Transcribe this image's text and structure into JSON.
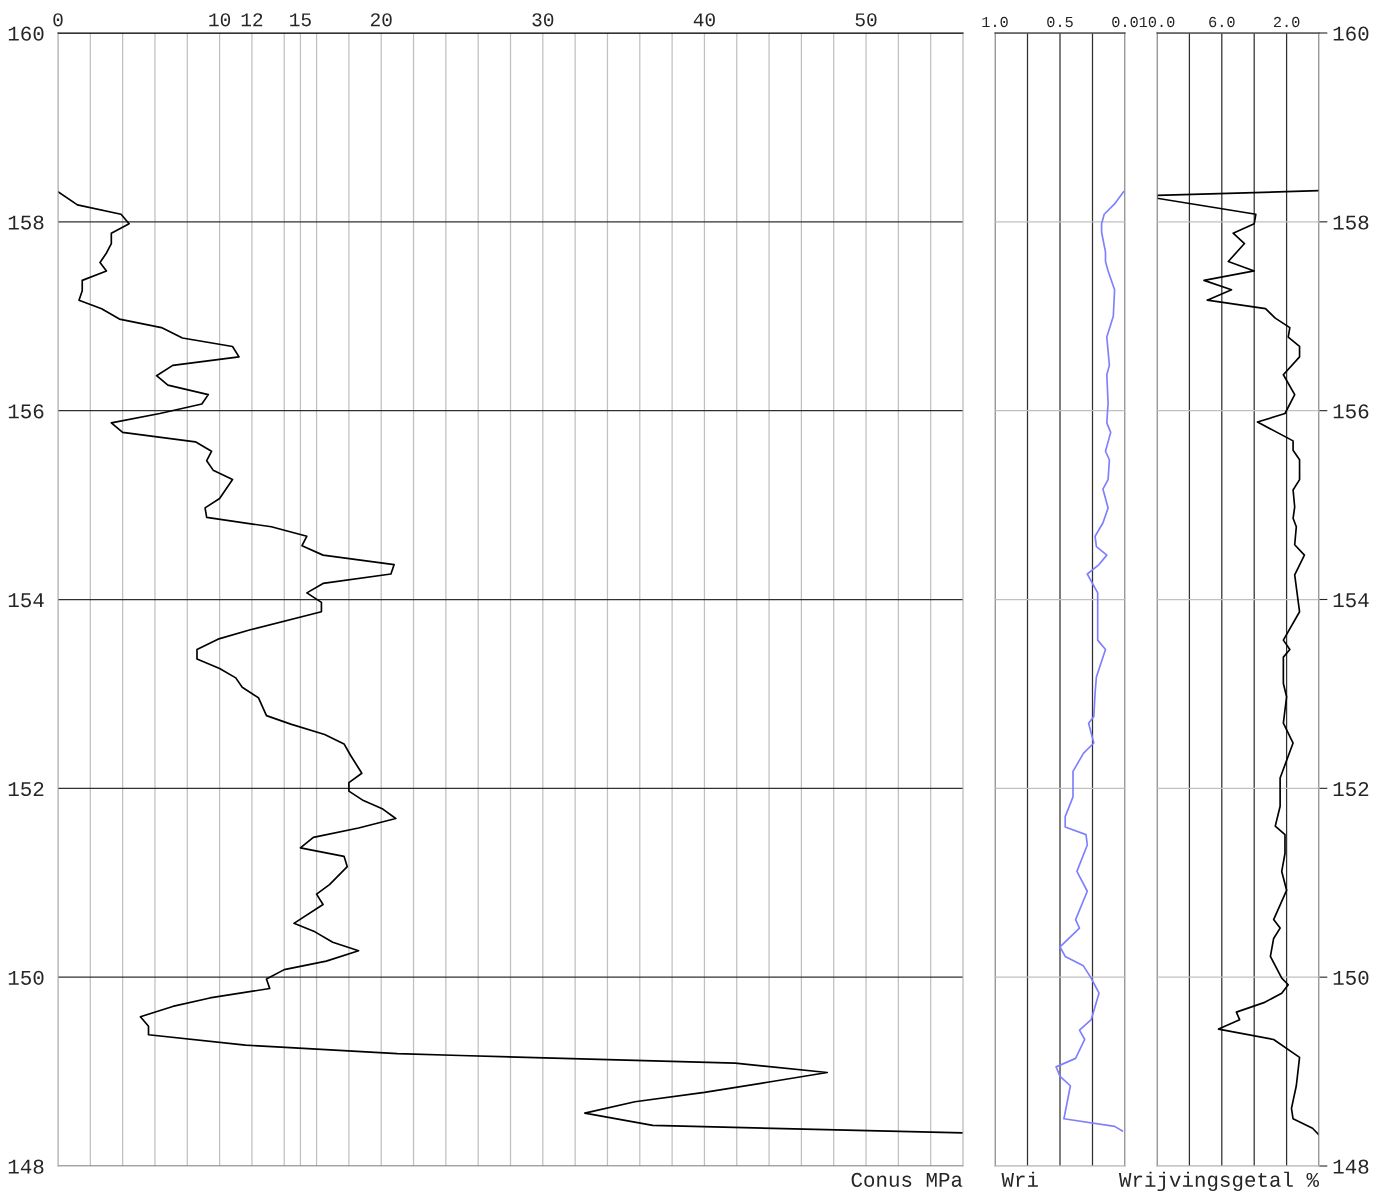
{
  "chart_data": [
    {
      "type": "line",
      "orientation": "horizontal",
      "xlabel": "Conus MPa",
      "grid": true,
      "xlim": [
        0,
        56
      ],
      "xticks": [
        0,
        {
          "value": 2,
          "label": null
        },
        {
          "value": 4,
          "label": null
        },
        {
          "value": 6,
          "label": null
        },
        {
          "value": 8,
          "label": null
        },
        10,
        12,
        {
          "value": 14,
          "label": null
        },
        15,
        {
          "value": 16,
          "label": null
        },
        {
          "value": 18,
          "label": null
        },
        20,
        {
          "value": 22,
          "label": null
        },
        {
          "value": 24,
          "label": null
        },
        {
          "value": 26,
          "label": null
        },
        {
          "value": 28,
          "label": null
        },
        30,
        {
          "value": 32,
          "label": null
        },
        {
          "value": 34,
          "label": null
        },
        {
          "value": 36,
          "label": null
        },
        {
          "value": 38,
          "label": null
        },
        40,
        {
          "value": 42,
          "label": null
        },
        {
          "value": 44,
          "label": null
        },
        {
          "value": 46,
          "label": null
        },
        {
          "value": 48,
          "label": null
        },
        50,
        {
          "value": 52,
          "label": null
        },
        {
          "value": 54,
          "label": null
        }
      ],
      "ylim": [
        148,
        160
      ],
      "yticks": [
        148,
        150,
        152,
        154,
        156,
        158,
        160
      ],
      "x": [
        158.32,
        158.18,
        158.08,
        157.98,
        157.88,
        157.77,
        157.67,
        157.57,
        157.48,
        157.38,
        157.27,
        157.17,
        157.08,
        156.97,
        156.88,
        156.77,
        156.68,
        156.57,
        156.48,
        156.37,
        156.27,
        156.17,
        156.07,
        155.97,
        155.87,
        155.77,
        155.67,
        155.57,
        155.47,
        155.37,
        155.27,
        155.07,
        154.97,
        154.87,
        154.77,
        154.67,
        154.57,
        154.47,
        154.37,
        154.27,
        154.17,
        154.07,
        153.97,
        153.87,
        153.68,
        153.58,
        153.47,
        153.37,
        153.27,
        153.17,
        153.07,
        152.96,
        152.77,
        152.68,
        152.57,
        152.47,
        152.35,
        152.16,
        152.06,
        151.97,
        151.87,
        151.78,
        151.68,
        151.58,
        151.48,
        151.37,
        151.28,
        151.17,
        150.98,
        150.88,
        150.77,
        150.57,
        150.48,
        150.37,
        150.28,
        150.17,
        150.08,
        149.98,
        149.88,
        149.78,
        149.69,
        149.58,
        149.48,
        149.39,
        149.28,
        149.19,
        149.17,
        149.09,
        148.99,
        148.89,
        148.78,
        148.68,
        148.56,
        148.43,
        148.35
      ],
      "series": [
        {
          "color": "#000000",
          "values": [
            0,
            1.2,
            3.9,
            4.4,
            3.3,
            3.3,
            3.0,
            2.6,
            3.0,
            1.5,
            1.5,
            1.3,
            2.7,
            3.8,
            6.4,
            7.7,
            10.8,
            11.2,
            7.1,
            6.1,
            6.8,
            9.3,
            8.9,
            6.3,
            3.3,
            4.0,
            8.5,
            9.5,
            9.2,
            9.6,
            10.8,
            10.0,
            9.1,
            9.2,
            13.2,
            15.4,
            15.1,
            16.4,
            20.8,
            20.6,
            16.4,
            15.4,
            16.3,
            16.3,
            11.9,
            9.9,
            8.6,
            8.6,
            10.0,
            11.0,
            11.4,
            12.4,
            12.9,
            14.4,
            16.5,
            17.7,
            18.1,
            18.8,
            18.0,
            18.0,
            18.9,
            20.1,
            20.9,
            18.6,
            15.8,
            15.0,
            17.7,
            17.9,
            16.8,
            16.0,
            16.4,
            14.6,
            15.9,
            17.0,
            18.6,
            16.6,
            14.0,
            12.9,
            13.1,
            9.4,
            7.1,
            5.1,
            5.6,
            5.6,
            11.6,
            21.0,
            24.9,
            41.9,
            47.6,
            44.0,
            40.0,
            35.7,
            32.6,
            36.8,
            56.0
          ]
        }
      ]
    },
    {
      "type": "line",
      "orientation": "horizontal",
      "xlabel": "Wri",
      "grid": true,
      "tick_labels": "x",
      "xlim": [
        1.0,
        0.0
      ],
      "xticks": [
        {
          "value": 1.0,
          "label": "1.0"
        },
        {
          "value": 0.75,
          "label": null
        },
        {
          "value": 0.5,
          "label": "0.5"
        },
        {
          "value": 0.25,
          "label": null
        },
        {
          "value": 0.0,
          "label": "0.0"
        }
      ],
      "ylim": [
        148,
        160
      ],
      "yticks": [
        148,
        150,
        152,
        154,
        156,
        158,
        160
      ],
      "x": [
        158.32,
        158.19,
        158.08,
        157.98,
        157.89,
        157.68,
        157.58,
        157.48,
        157.28,
        157.0,
        156.78,
        156.48,
        156.38,
        156.08,
        155.87,
        155.77,
        155.57,
        155.48,
        155.27,
        155.17,
        154.97,
        154.81,
        154.67,
        154.56,
        154.47,
        154.37,
        154.27,
        154.07,
        153.57,
        153.47,
        153.18,
        153.01,
        152.76,
        152.69,
        152.48,
        152.37,
        152.18,
        151.91,
        151.7,
        151.59,
        151.51,
        151.4,
        151.12,
        150.91,
        150.61,
        150.52,
        150.32,
        150.22,
        150.12,
        149.99,
        149.83,
        149.55,
        149.44,
        149.34,
        149.14,
        149.05,
        148.95,
        148.85,
        148.5,
        148.42,
        148.37
      ],
      "series": [
        {
          "color": "#7f7fff",
          "values": [
            0.01,
            0.08,
            0.16,
            0.18,
            0.18,
            0.15,
            0.15,
            0.13,
            0.08,
            0.09,
            0.14,
            0.12,
            0.14,
            0.13,
            0.14,
            0.11,
            0.15,
            0.12,
            0.13,
            0.17,
            0.13,
            0.17,
            0.23,
            0.22,
            0.14,
            0.2,
            0.29,
            0.21,
            0.21,
            0.15,
            0.22,
            0.23,
            0.24,
            0.28,
            0.24,
            0.32,
            0.4,
            0.4,
            0.46,
            0.46,
            0.3,
            0.29,
            0.37,
            0.29,
            0.38,
            0.35,
            0.5,
            0.46,
            0.32,
            0.26,
            0.2,
            0.26,
            0.35,
            0.31,
            0.38,
            0.53,
            0.5,
            0.42,
            0.47,
            0.08,
            0.02
          ]
        }
      ]
    },
    {
      "type": "line",
      "orientation": "horizontal",
      "xlabel": "Wrijvingsgetal %",
      "grid": true,
      "xlim": [
        10.0,
        0.0
      ],
      "xticks": [
        {
          "value": 10.0,
          "label": "10.0"
        },
        {
          "value": 8.0,
          "label": null
        },
        {
          "value": 6.0,
          "label": "6.0"
        },
        {
          "value": 4.0,
          "label": null
        },
        {
          "value": 2.0,
          "label": "2.0"
        },
        {
          "value": 0.0,
          "label": null
        }
      ],
      "ylim": [
        148,
        160
      ],
      "yticks": [
        148,
        150,
        152,
        154,
        156,
        158,
        160
      ],
      "x": [
        158.33,
        158.28,
        158.25,
        158.08,
        157.98,
        157.88,
        157.77,
        157.58,
        157.48,
        157.38,
        157.28,
        157.17,
        157.08,
        156.98,
        156.88,
        156.78,
        156.68,
        156.57,
        156.38,
        156.17,
        155.97,
        155.88,
        155.68,
        155.58,
        155.48,
        155.27,
        155.16,
        154.98,
        154.86,
        154.77,
        154.58,
        154.47,
        154.26,
        153.87,
        153.57,
        153.47,
        153.39,
        153.11,
        152.97,
        152.69,
        152.48,
        152.11,
        151.81,
        151.6,
        151.51,
        151.31,
        151.12,
        150.92,
        150.61,
        150.52,
        150.41,
        150.22,
        149.99,
        149.92,
        149.83,
        149.73,
        149.63,
        149.55,
        149.45,
        149.34,
        149.15,
        148.85,
        148.61,
        148.5,
        148.4,
        148.33
      ],
      "series": [
        {
          "color": "#000000",
          "values": [
            0.0,
            10.0,
            10.0,
            3.9,
            4.0,
            5.3,
            4.6,
            5.6,
            4.0,
            7.1,
            5.4,
            6.9,
            3.3,
            2.7,
            1.8,
            1.9,
            1.2,
            1.2,
            2.2,
            1.5,
            2.1,
            3.8,
            1.6,
            1.6,
            1.2,
            1.2,
            1.6,
            1.5,
            1.6,
            1.4,
            1.5,
            0.9,
            1.5,
            1.2,
            2.2,
            1.8,
            2.2,
            2.2,
            2.0,
            2.2,
            1.6,
            2.4,
            2.4,
            2.7,
            2.1,
            2.1,
            2.3,
            2.0,
            2.8,
            2.4,
            2.8,
            3.0,
            2.3,
            1.9,
            2.3,
            3.4,
            5.1,
            4.9,
            6.2,
            2.8,
            1.2,
            1.4,
            1.7,
            1.6,
            0.4,
            0.0
          ]
        }
      ]
    }
  ]
}
